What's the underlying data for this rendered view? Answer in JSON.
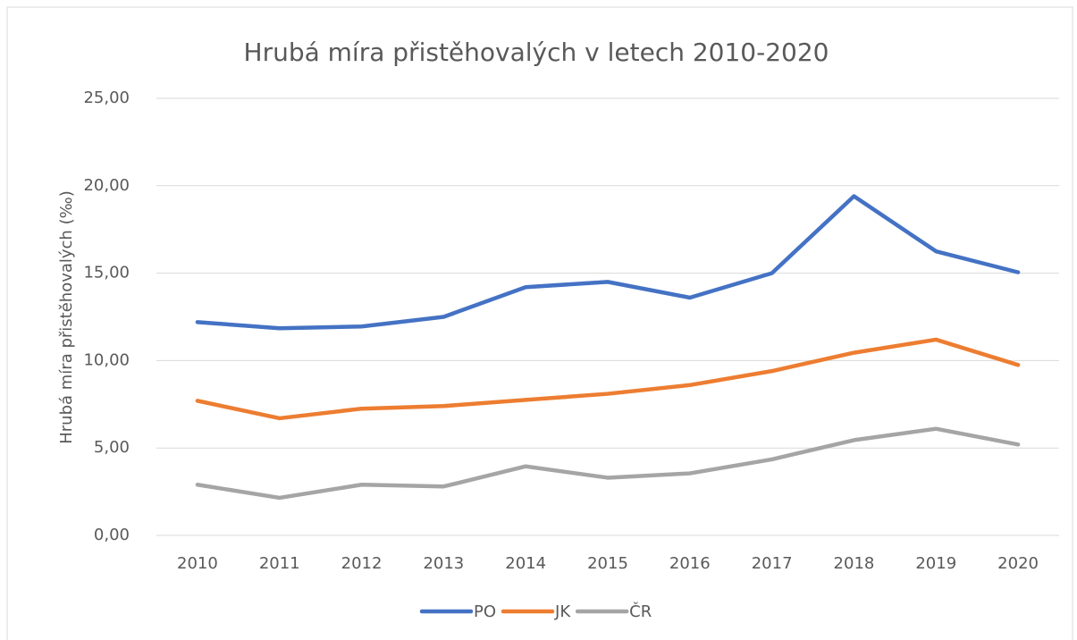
{
  "chart_data": {
    "type": "line",
    "title": "Hrubá míra přistěhovalých v letech 2010-2020",
    "y_label": "Hrubá míra přistěhovalých (‰)",
    "categories": [
      "2010",
      "2011",
      "2012",
      "2013",
      "2014",
      "2015",
      "2016",
      "2017",
      "2018",
      "2019",
      "2020"
    ],
    "series": [
      {
        "name": "PO",
        "color": "#4472c4",
        "values": [
          12.2,
          11.85,
          11.95,
          12.5,
          14.2,
          14.5,
          13.6,
          15.0,
          19.4,
          16.25,
          15.05
        ]
      },
      {
        "name": "JK",
        "color": "#ed7d31",
        "values": [
          7.7,
          6.7,
          7.25,
          7.4,
          7.75,
          8.1,
          8.6,
          9.4,
          10.45,
          11.2,
          9.75
        ]
      },
      {
        "name": "ČR",
        "color": "#a5a5a5",
        "values": [
          2.9,
          2.15,
          2.9,
          2.8,
          3.95,
          3.3,
          3.55,
          4.35,
          5.45,
          6.1,
          5.2
        ]
      }
    ],
    "ylim": [
      0,
      25
    ],
    "yticks": [
      {
        "value": 0,
        "label": "0,00"
      },
      {
        "value": 5,
        "label": "5,00"
      },
      {
        "value": 10,
        "label": "10,00"
      },
      {
        "value": 15,
        "label": "15,00"
      },
      {
        "value": 20,
        "label": "20,00"
      },
      {
        "value": 25,
        "label": "25,00"
      }
    ],
    "grid": true,
    "legend": "bottom"
  }
}
